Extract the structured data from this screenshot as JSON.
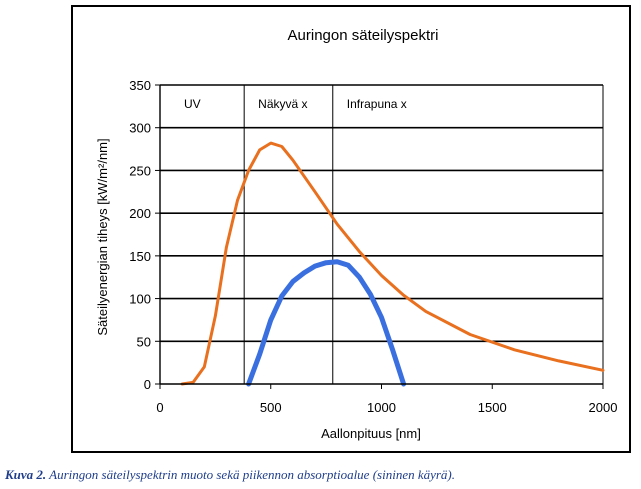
{
  "chart_data": {
    "type": "line",
    "title": "Auringon säteilyspektri",
    "xlabel": "Aallonpituus [nm]",
    "ylabel": "Säteilyenergian tiheys [kW/m²/nm]",
    "xlim": [
      0,
      2000
    ],
    "ylim": [
      0,
      350
    ],
    "x_ticks": [
      0,
      500,
      1000,
      1500,
      2000
    ],
    "y_ticks": [
      0,
      50,
      100,
      150,
      200,
      250,
      300,
      350
    ],
    "grid": "horizontal",
    "regions": [
      {
        "label": "UV",
        "from": 0,
        "to": 380
      },
      {
        "label": "Näkyvä x",
        "from": 380,
        "to": 780
      },
      {
        "label": "Infrapuna x",
        "from": 780,
        "to": 2000
      }
    ],
    "series": [
      {
        "color": "#e8701e",
        "x": [
          100,
          150,
          200,
          250,
          300,
          350,
          400,
          450,
          500,
          550,
          600,
          700,
          800,
          900,
          1000,
          1100,
          1200,
          1400,
          1600,
          1800,
          2000
        ],
        "y": [
          0,
          2,
          20,
          80,
          160,
          215,
          250,
          274,
          282,
          278,
          262,
          225,
          187,
          155,
          127,
          104,
          85,
          58,
          40,
          27,
          16
        ]
      },
      {
        "color": "#3a6fe0",
        "x": [
          400,
          450,
          500,
          550,
          600,
          650,
          700,
          750,
          800,
          850,
          900,
          950,
          1000,
          1050,
          1100
        ],
        "y": [
          0,
          35,
          75,
          103,
          120,
          130,
          138,
          142,
          143,
          139,
          125,
          105,
          78,
          40,
          0
        ]
      }
    ]
  },
  "caption": {
    "lead": "Kuva 2.",
    "text": " Auringon säteilyspektrin muoto sekä piikennon absorptioalue (sininen käyrä)."
  }
}
